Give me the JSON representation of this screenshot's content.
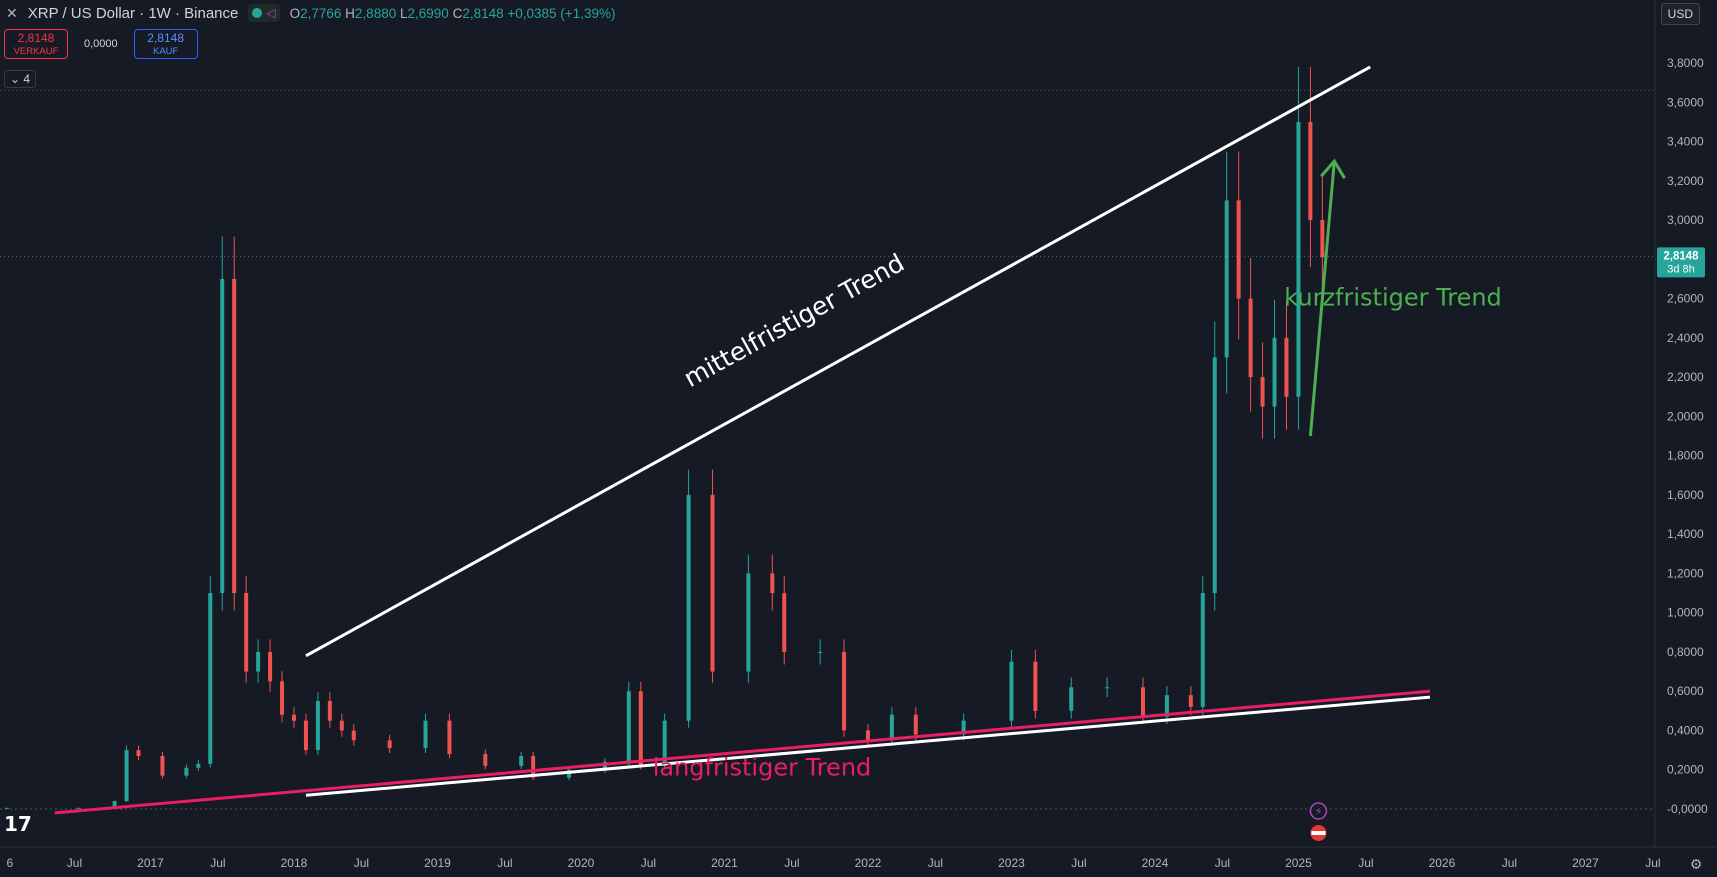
{
  "header": {
    "symbol": "XRP / US Dollar · 1W · Binance",
    "o_label": "O",
    "o": "2,7766",
    "h_label": "H",
    "h": "2,8880",
    "l_label": "L",
    "l": "2,6990",
    "c_label": "C",
    "c": "2,8148",
    "change": "+0,0385 (+1,39%)"
  },
  "trade": {
    "sell_price": "2,8148",
    "sell_label": "VERKAUF",
    "spread": "0,0000",
    "buy_price": "2,8148",
    "buy_label": "KAUF"
  },
  "indicator_count": "4",
  "currency": "USD",
  "colors": {
    "up": "#26a69a",
    "down": "#ef5350",
    "mid_trend": "#ffffff",
    "long_trend": "#e91e63",
    "short_trend": "#4caf50",
    "bg": "#161a25"
  },
  "chart_data": {
    "type": "candlestick",
    "x_tick_labels": [
      "6",
      "Jul",
      "2017",
      "Jul",
      "2018",
      "Jul",
      "2019",
      "Jul",
      "2020",
      "Jul",
      "2021",
      "Jul",
      "2022",
      "Jul",
      "2023",
      "Jul",
      "2024",
      "Jul",
      "2025",
      "Jul",
      "2026",
      "Jul",
      "2027",
      "Jul"
    ],
    "y_tick_labels": [
      "3,8000",
      "3,6000",
      "3,4000",
      "3,2000",
      "3,0000",
      "2,8000",
      "2,6000",
      "2,4000",
      "2,2000",
      "2,0000",
      "1,8000",
      "1,6000",
      "1,4000",
      "1,2000",
      "1,0000",
      "0,8000",
      "0,6000",
      "0,4000",
      "0,2000",
      "-0,0000"
    ],
    "ylim": [
      -0.05,
      3.9
    ],
    "last_price": "2,8148",
    "countdown": "3d 8h",
    "series": [
      {
        "date": "2016-07",
        "close": 0.006
      },
      {
        "date": "2017-01",
        "close": 0.006
      },
      {
        "date": "2017-04",
        "close": 0.04
      },
      {
        "date": "2017-05",
        "close": 0.3
      },
      {
        "date": "2017-06",
        "close": 0.27
      },
      {
        "date": "2017-08",
        "close": 0.17
      },
      {
        "date": "2017-10",
        "close": 0.21
      },
      {
        "date": "2017-11",
        "close": 0.23
      },
      {
        "date": "2017-12",
        "close": 1.1
      },
      {
        "date": "2018-01",
        "close": 2.7
      },
      {
        "date": "2018-02",
        "close": 1.1
      },
      {
        "date": "2018-03",
        "close": 0.7
      },
      {
        "date": "2018-04",
        "close": 0.8
      },
      {
        "date": "2018-05",
        "close": 0.65
      },
      {
        "date": "2018-06",
        "close": 0.48
      },
      {
        "date": "2018-07",
        "close": 0.45
      },
      {
        "date": "2018-08",
        "close": 0.3
      },
      {
        "date": "2018-09",
        "close": 0.55
      },
      {
        "date": "2018-10",
        "close": 0.45
      },
      {
        "date": "2018-11",
        "close": 0.4
      },
      {
        "date": "2018-12",
        "close": 0.35
      },
      {
        "date": "2019-03",
        "close": 0.31
      },
      {
        "date": "2019-06",
        "close": 0.45
      },
      {
        "date": "2019-08",
        "close": 0.28
      },
      {
        "date": "2019-11",
        "close": 0.22
      },
      {
        "date": "2020-02",
        "close": 0.27
      },
      {
        "date": "2020-03",
        "close": 0.16
      },
      {
        "date": "2020-06",
        "close": 0.2
      },
      {
        "date": "2020-09",
        "close": 0.24
      },
      {
        "date": "2020-11",
        "close": 0.6
      },
      {
        "date": "2020-12",
        "close": 0.22
      },
      {
        "date": "2021-02",
        "close": 0.45
      },
      {
        "date": "2021-04",
        "close": 1.6
      },
      {
        "date": "2021-06",
        "close": 0.7
      },
      {
        "date": "2021-09",
        "close": 1.2
      },
      {
        "date": "2021-11",
        "close": 1.1
      },
      {
        "date": "2021-12",
        "close": 0.8
      },
      {
        "date": "2022-03",
        "close": 0.8
      },
      {
        "date": "2022-05",
        "close": 0.4
      },
      {
        "date": "2022-07",
        "close": 0.35
      },
      {
        "date": "2022-09",
        "close": 0.48
      },
      {
        "date": "2022-11",
        "close": 0.38
      },
      {
        "date": "2023-03",
        "close": 0.45
      },
      {
        "date": "2023-07",
        "close": 0.75
      },
      {
        "date": "2023-09",
        "close": 0.5
      },
      {
        "date": "2023-12",
        "close": 0.62
      },
      {
        "date": "2024-03",
        "close": 0.62
      },
      {
        "date": "2024-06",
        "close": 0.47
      },
      {
        "date": "2024-08",
        "close": 0.58
      },
      {
        "date": "2024-10",
        "close": 0.52
      },
      {
        "date": "2024-11",
        "close": 1.1
      },
      {
        "date": "2024-12",
        "close": 2.3
      },
      {
        "date": "2025-01",
        "close": 3.1
      },
      {
        "date": "2025-02",
        "close": 2.6
      },
      {
        "date": "2025-03",
        "close": 2.2
      },
      {
        "date": "2025-04",
        "close": 2.05
      },
      {
        "date": "2025-05",
        "close": 2.4
      },
      {
        "date": "2025-06",
        "close": 2.1
      },
      {
        "date": "2025-07",
        "close": 3.5
      },
      {
        "date": "2025-08",
        "close": 3.0
      },
      {
        "date": "2025-09",
        "close": 2.81
      }
    ],
    "trend_lines": [
      {
        "label": "mittelfristiger Trend",
        "from": {
          "date": "2018-08",
          "value": 0.78
        },
        "to": {
          "date": "2026-01",
          "value": 3.78
        },
        "color": "#ffffff"
      },
      {
        "label": "langfristiger Trend",
        "from": {
          "date": "2016-11",
          "value": -0.02
        },
        "to": {
          "date": "2026-06",
          "value": 0.6
        },
        "color": "#e91e63"
      },
      {
        "label": "",
        "from": {
          "date": "2018-08",
          "value": 0.07
        },
        "to": {
          "date": "2026-06",
          "value": 0.57
        },
        "color": "#ffffff"
      },
      {
        "label": "kurzfristiger Trend",
        "from": {
          "date": "2025-08",
          "value": 1.9
        },
        "to": {
          "date": "2025-10",
          "value": 3.3
        },
        "color": "#4caf50"
      }
    ]
  }
}
